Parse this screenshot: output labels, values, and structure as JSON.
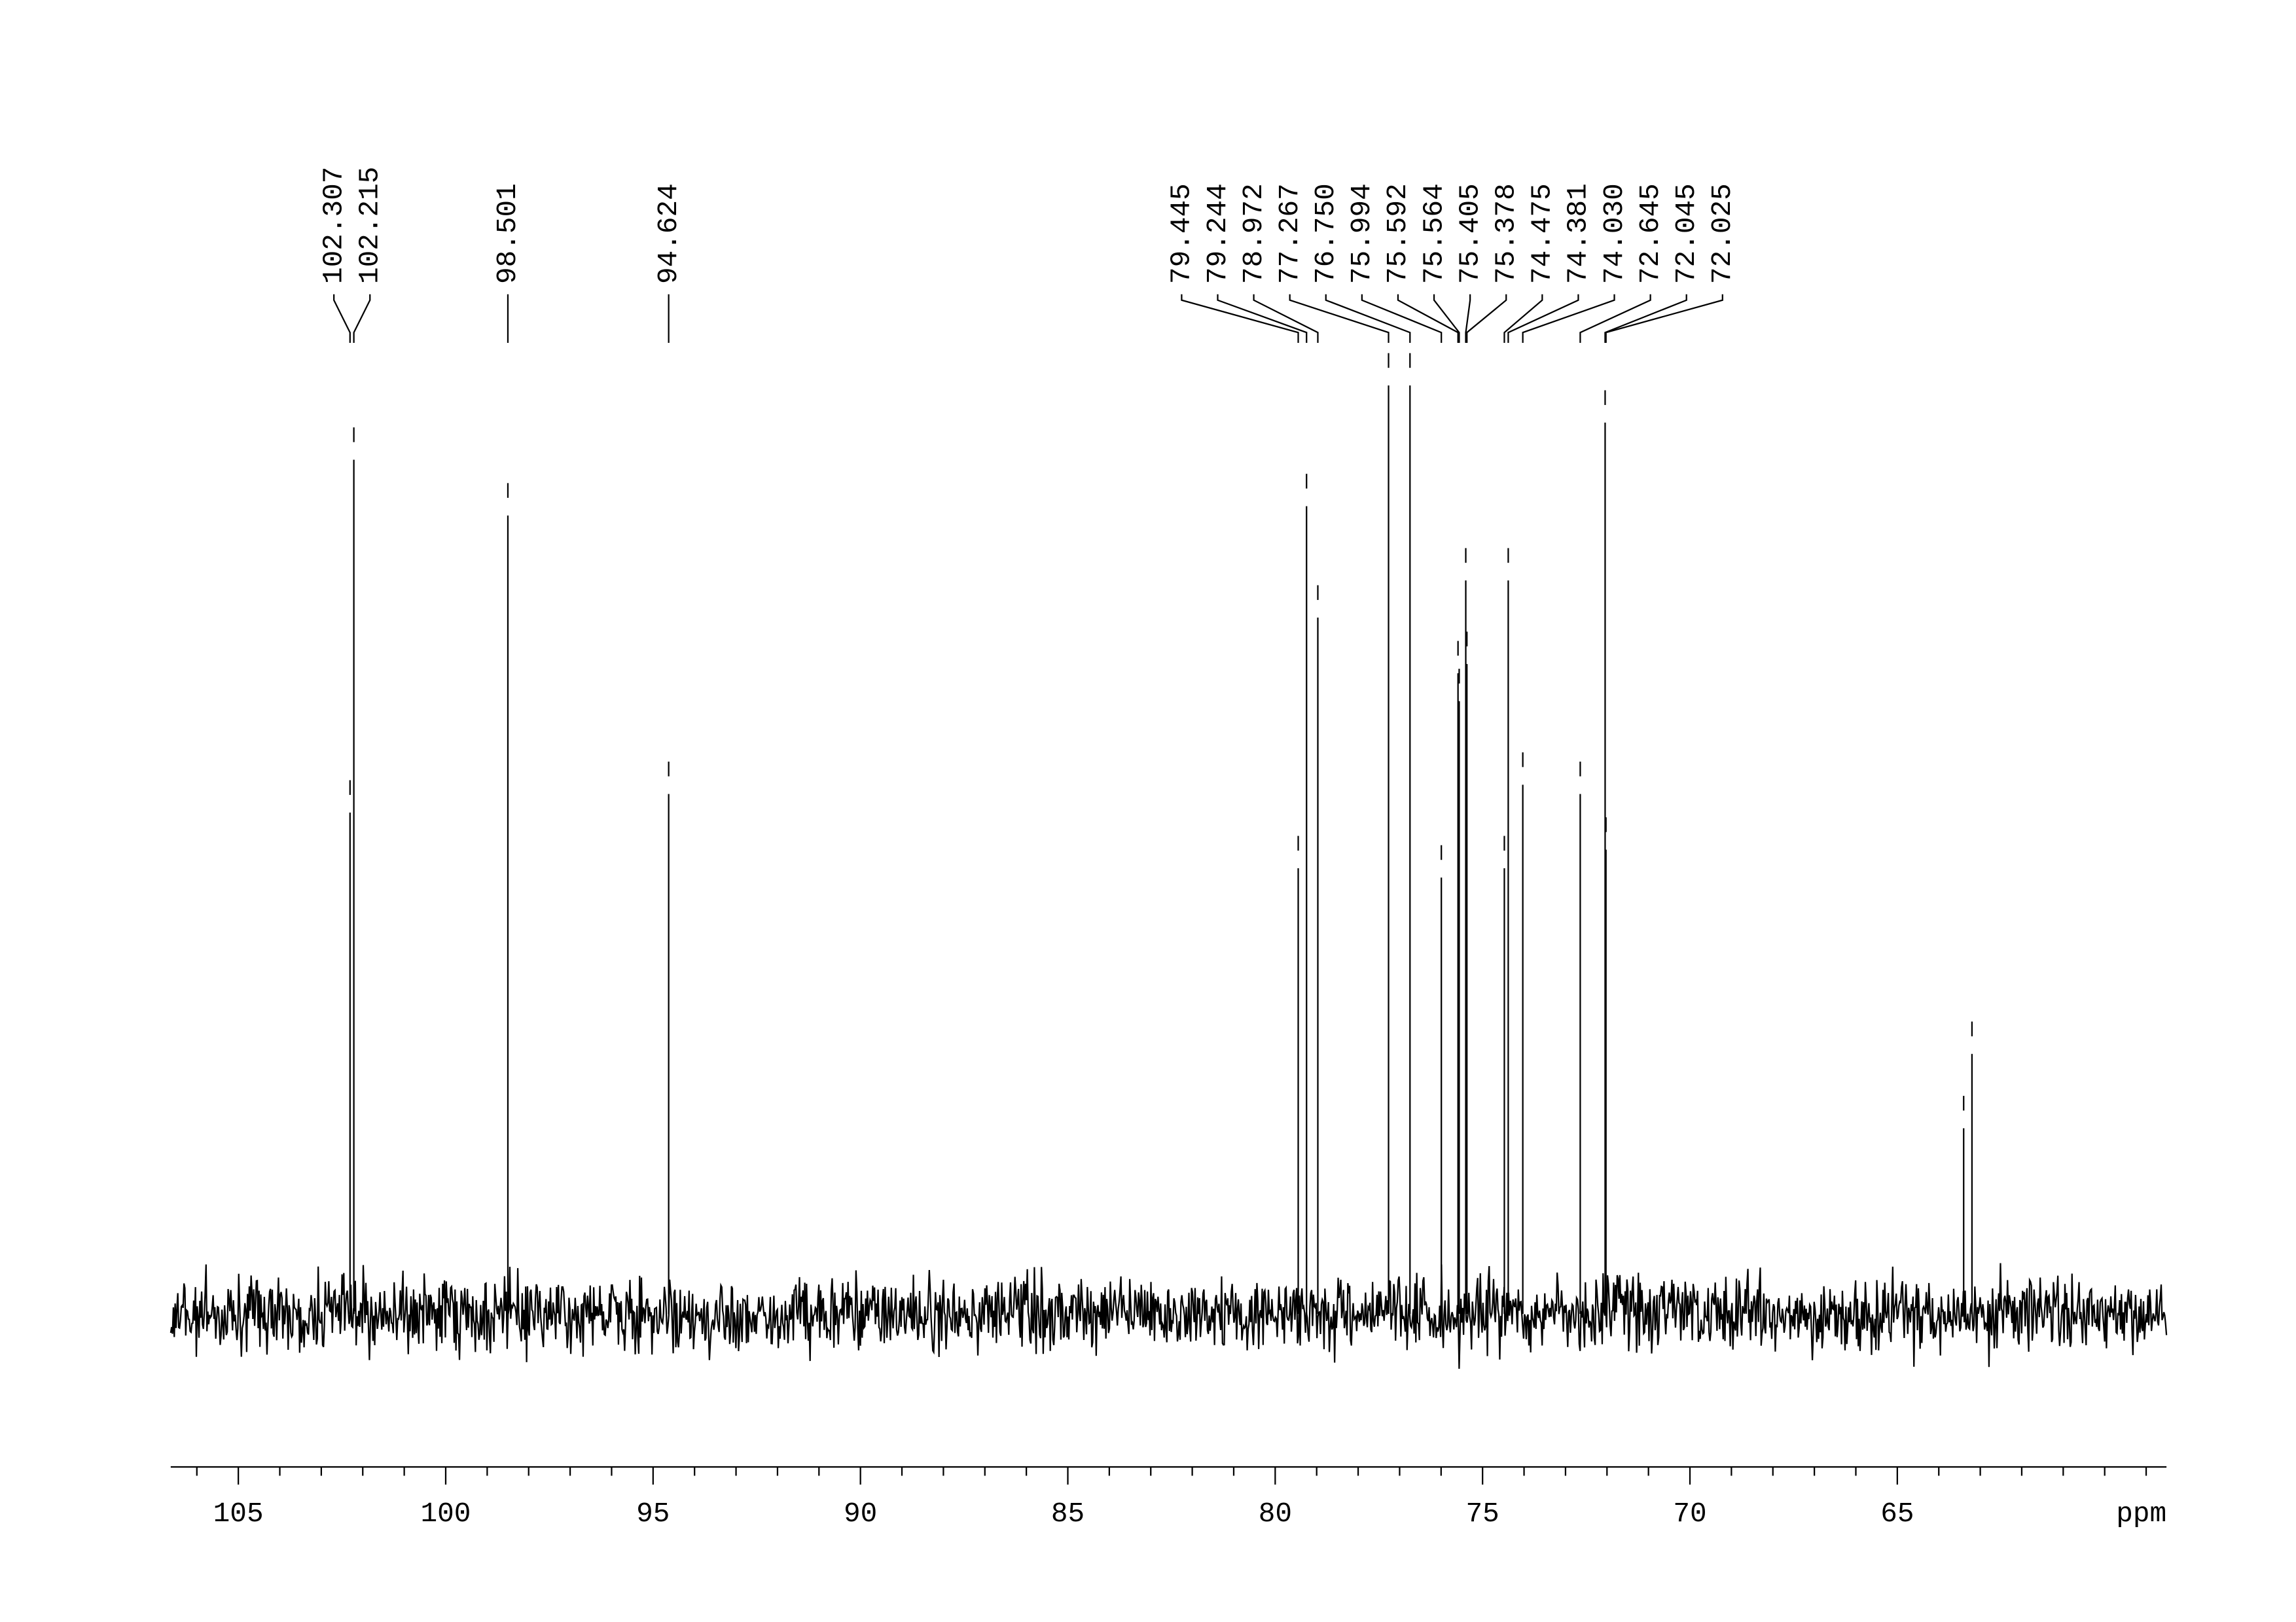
{
  "chart_data": {
    "type": "nmr-spectrum",
    "x_label": "ppm",
    "xlim": [
      106.63,
      58.51
    ],
    "xticks": [
      105,
      100,
      95,
      90,
      85,
      80,
      75,
      70,
      65
    ],
    "xminor_ticks": [
      59,
      60,
      61,
      62,
      63,
      64,
      66,
      67,
      68,
      69,
      71,
      72,
      73,
      74,
      76,
      77,
      78,
      79,
      81,
      82,
      83,
      84,
      86,
      87,
      88,
      89,
      91,
      92,
      93,
      94,
      96,
      97,
      98,
      99,
      101,
      102,
      103,
      104,
      106
    ],
    "ylim": [
      0,
      100
    ],
    "color": "#000000",
    "x": [
      102.307,
      102.215,
      98.501,
      94.624,
      79.445,
      79.244,
      78.972,
      77.267,
      76.75,
      75.994,
      75.592,
      75.564,
      75.405,
      75.378,
      74.475,
      74.381,
      74.03,
      72.645,
      72.045,
      72.025,
      63.4,
      63.2
    ],
    "values": [
      54,
      92,
      86,
      56,
      48,
      87,
      75,
      100,
      100,
      47,
      69,
      66,
      79,
      70,
      48,
      79,
      57,
      56,
      96,
      50,
      20,
      28
    ],
    "value_labels": [
      "102.307",
      "102.215",
      "98.501",
      "94.624",
      "79.445",
      "79.244",
      "78.972",
      "77.267",
      "76.750",
      "75.994",
      "75.592",
      "75.564",
      "75.405",
      "75.378",
      "74.475",
      "74.381",
      "74.030",
      "72.645",
      "72.045",
      "72.025",
      null,
      null
    ]
  }
}
